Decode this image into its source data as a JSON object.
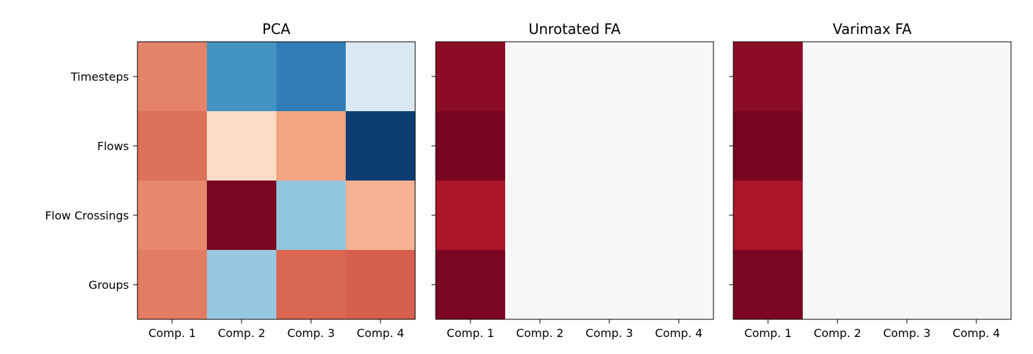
{
  "chart_data": [
    {
      "type": "heatmap",
      "title": "PCA",
      "x_categories": [
        "Comp. 1",
        "Comp. 2",
        "Comp. 3",
        "Comp. 4"
      ],
      "y_categories": [
        "Timesteps",
        "Flows",
        "Flow Crossings",
        "Groups"
      ],
      "show_y_labels": true,
      "colormap": "RdBu_r",
      "vmin": -1,
      "vmax": 1,
      "values": [
        [
          0.5,
          -0.6,
          -0.7,
          -0.15
        ],
        [
          0.55,
          0.2,
          0.4,
          -0.95
        ],
        [
          0.48,
          0.95,
          -0.4,
          0.35
        ],
        [
          0.52,
          -0.38,
          0.58,
          0.6
        ]
      ]
    },
    {
      "type": "heatmap",
      "title": "Unrotated FA",
      "x_categories": [
        "Comp. 1",
        "Comp. 2",
        "Comp. 3",
        "Comp. 4"
      ],
      "y_categories": [
        "Timesteps",
        "Flows",
        "Flow Crossings",
        "Groups"
      ],
      "show_y_labels": false,
      "colormap": "RdBu_r",
      "vmin": -1,
      "vmax": 1,
      "values": [
        [
          0.9,
          0,
          0,
          0
        ],
        [
          0.96,
          0,
          0,
          0
        ],
        [
          0.82,
          0,
          0,
          0
        ],
        [
          0.95,
          0,
          0,
          0
        ]
      ]
    },
    {
      "type": "heatmap",
      "title": "Varimax FA",
      "x_categories": [
        "Comp. 1",
        "Comp. 2",
        "Comp. 3",
        "Comp. 4"
      ],
      "y_categories": [
        "Timesteps",
        "Flows",
        "Flow Crossings",
        "Groups"
      ],
      "show_y_labels": false,
      "colormap": "RdBu_r",
      "vmin": -1,
      "vmax": 1,
      "values": [
        [
          0.9,
          0,
          0,
          0
        ],
        [
          0.96,
          0,
          0,
          0
        ],
        [
          0.82,
          0,
          0,
          0
        ],
        [
          0.95,
          0,
          0,
          0
        ]
      ]
    }
  ]
}
